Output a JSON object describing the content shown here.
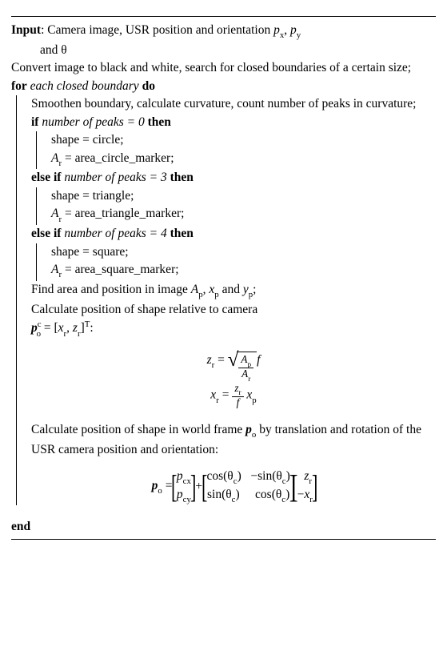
{
  "input_label": "Input",
  "input_text_a": ": Camera image, USR position and orientation ",
  "input_vars": "p",
  "input_sub_x": "x",
  "input_comma": ", ",
  "input_sub_y": "y",
  "input_text_b": "and θ",
  "line_convert": "Convert image to black and white, search for closed boundaries of a certain size;",
  "for_kw": "for",
  "for_cond": " each closed boundary ",
  "do_kw": "do",
  "line_smooth": "Smoothen boundary, calculate curvature, count number of peaks in curvature;",
  "if_kw": "if",
  "cond0": " number of peaks = 0 ",
  "then_kw": "then",
  "shape_eq_circle": "shape = circle;",
  "ar_circle": " = area_circle_marker;",
  "elseif_kw": "else if",
  "cond3": " number of peaks = 3 ",
  "shape_eq_tri": "shape = triangle;",
  "ar_tri": " = area_triangle_marker;",
  "cond4": " number of peaks = 4 ",
  "shape_eq_sq": "shape = square;",
  "ar_sq": " = area_square_marker;",
  "A_sym": "A",
  "r_sub": "r",
  "line_findarea_a": "Find area and position in image ",
  "p_sub": "p",
  "line_findarea_b": " and ",
  "line_findarea_c": ";",
  "x_sym": "x",
  "y_sym": "y",
  "line_calcrel_a": "Calculate position of shape relative to camera",
  "po_vec": "p",
  "o_sub": "o",
  "c_sup": "c",
  "eqbr_open": " = [",
  "z_sym": "z",
  "eqbr_mid": ", ",
  "eqbr_close_T": "]",
  "T_sup": "T",
  "colon": ":",
  "eq_eq": " = ",
  "f_sym": "f",
  "line_world_a": "Calculate position of shape in world frame ",
  "line_world_b": " by translation and rotation of the USR camera position and orientation:",
  "cx_sub": "cx",
  "cy_sub": "cy",
  "cos_t": "cos(θ",
  "sin_t": "sin(θ",
  "c_sub": "c",
  "paren_close": ")",
  "minus": "−",
  "plus": " + ",
  "neg_xr": "−",
  "end_kw": "end"
}
